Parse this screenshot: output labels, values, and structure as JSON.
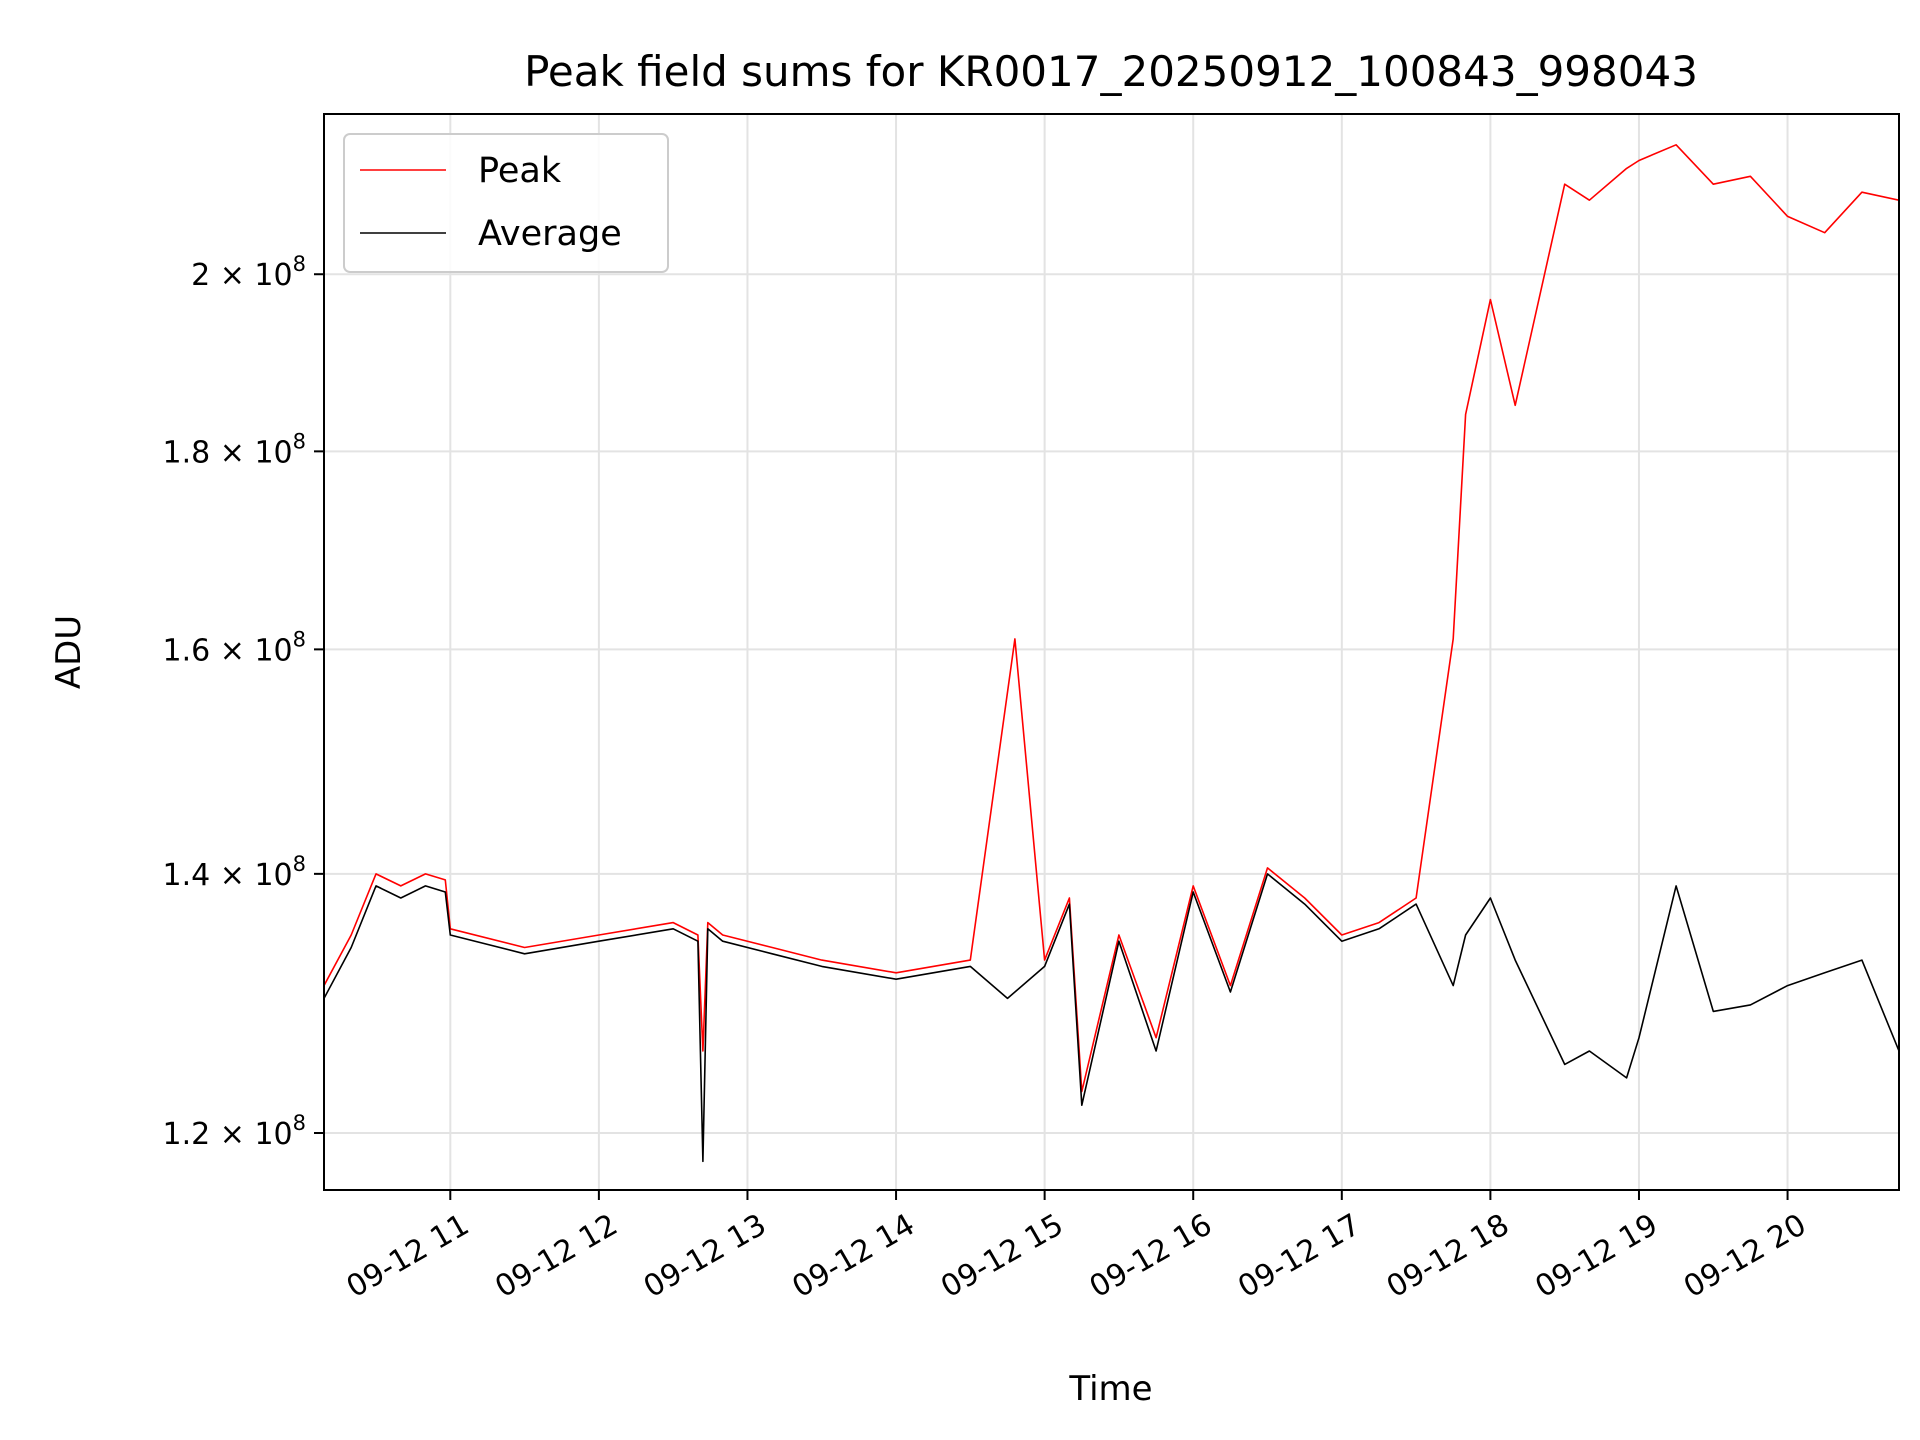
{
  "chart_data": {
    "type": "line",
    "title": "Peak field sums for KR0017_20250912_100843_998043",
    "xlabel": "Time",
    "ylabel": "ADU",
    "x_scale": "time",
    "y_scale": "log",
    "xlim": [
      "2025-09-12 10:09",
      "2025-09-12 20:45"
    ],
    "ylim": [
      116000000,
      220000000
    ],
    "grid": true,
    "legend_position": "upper left",
    "x_ticks": [
      "09-12 11",
      "09-12 12",
      "09-12 13",
      "09-12 14",
      "09-12 15",
      "09-12 16",
      "09-12 17",
      "09-12 18",
      "09-12 19",
      "09-12 20"
    ],
    "y_ticks": [
      {
        "value": 120000000,
        "mantissa": "1.2",
        "exponent": "8"
      },
      {
        "value": 140000000,
        "mantissa": "1.4",
        "exponent": "8"
      },
      {
        "value": 160000000,
        "mantissa": "1.6",
        "exponent": "8"
      },
      {
        "value": 180000000,
        "mantissa": "1.8",
        "exponent": "8"
      },
      {
        "value": 200000000,
        "mantissa": "2",
        "exponent": "8"
      }
    ],
    "series": [
      {
        "name": "Peak",
        "color": "#ff0000",
        "x": [
          "2025-09-12 10:09",
          "2025-09-12 10:20",
          "2025-09-12 10:30",
          "2025-09-12 10:40",
          "2025-09-12 10:50",
          "2025-09-12 10:58",
          "2025-09-12 11:00",
          "2025-09-12 11:30",
          "2025-09-12 12:00",
          "2025-09-12 12:30",
          "2025-09-12 12:40",
          "2025-09-12 12:42",
          "2025-09-12 12:44",
          "2025-09-12 12:50",
          "2025-09-12 13:10",
          "2025-09-12 13:30",
          "2025-09-12 14:00",
          "2025-09-12 14:30",
          "2025-09-12 14:48",
          "2025-09-12 15:00",
          "2025-09-12 15:10",
          "2025-09-12 15:15",
          "2025-09-12 15:30",
          "2025-09-12 15:45",
          "2025-09-12 16:00",
          "2025-09-12 16:15",
          "2025-09-12 16:30",
          "2025-09-12 16:45",
          "2025-09-12 17:00",
          "2025-09-12 17:15",
          "2025-09-12 17:30",
          "2025-09-12 17:45",
          "2025-09-12 17:50",
          "2025-09-12 18:00",
          "2025-09-12 18:10",
          "2025-09-12 18:30",
          "2025-09-12 18:40",
          "2025-09-12 18:55",
          "2025-09-12 19:00",
          "2025-09-12 19:15",
          "2025-09-12 19:30",
          "2025-09-12 19:45",
          "2025-09-12 20:00",
          "2025-09-12 20:15",
          "2025-09-12 20:30",
          "2025-09-12 20:45"
        ],
        "y": [
          131000000,
          135000000,
          140000000,
          139000000,
          140000000,
          139500000,
          135500000,
          134000000,
          135000000,
          136000000,
          135000000,
          126000000,
          136000000,
          135000000,
          134000000,
          133000000,
          132000000,
          133000000,
          161000000,
          133000000,
          138000000,
          123000000,
          135000000,
          127000000,
          139000000,
          131000000,
          140500000,
          138000000,
          135000000,
          136000000,
          138000000,
          161000000,
          184000000,
          197000000,
          185000000,
          211000000,
          209000000,
          213000000,
          214000000,
          216000000,
          211000000,
          212000000,
          207000000,
          205000000,
          210000000,
          209000000
        ]
      },
      {
        "name": "Average",
        "color": "#000000",
        "x": [
          "2025-09-12 10:09",
          "2025-09-12 10:20",
          "2025-09-12 10:30",
          "2025-09-12 10:40",
          "2025-09-12 10:50",
          "2025-09-12 10:58",
          "2025-09-12 11:00",
          "2025-09-12 11:30",
          "2025-09-12 12:00",
          "2025-09-12 12:30",
          "2025-09-12 12:40",
          "2025-09-12 12:42",
          "2025-09-12 12:44",
          "2025-09-12 12:50",
          "2025-09-12 13:10",
          "2025-09-12 13:30",
          "2025-09-12 14:00",
          "2025-09-12 14:30",
          "2025-09-12 14:45",
          "2025-09-12 15:00",
          "2025-09-12 15:10",
          "2025-09-12 15:15",
          "2025-09-12 15:30",
          "2025-09-12 15:45",
          "2025-09-12 16:00",
          "2025-09-12 16:15",
          "2025-09-12 16:30",
          "2025-09-12 16:45",
          "2025-09-12 17:00",
          "2025-09-12 17:15",
          "2025-09-12 17:30",
          "2025-09-12 17:45",
          "2025-09-12 17:50",
          "2025-09-12 18:00",
          "2025-09-12 18:10",
          "2025-09-12 18:30",
          "2025-09-12 18:40",
          "2025-09-12 18:55",
          "2025-09-12 19:00",
          "2025-09-12 19:15",
          "2025-09-12 19:30",
          "2025-09-12 19:45",
          "2025-09-12 20:00",
          "2025-09-12 20:15",
          "2025-09-12 20:30",
          "2025-09-12 20:45"
        ],
        "y": [
          130000000,
          134000000,
          139000000,
          138000000,
          139000000,
          138500000,
          135000000,
          133500000,
          134500000,
          135500000,
          134500000,
          118000000,
          135500000,
          134500000,
          133500000,
          132500000,
          131500000,
          132500000,
          130000000,
          132500000,
          137500000,
          122000000,
          134500000,
          126000000,
          138500000,
          130500000,
          140000000,
          137500000,
          134500000,
          135500000,
          137500000,
          131000000,
          135000000,
          138000000,
          133000000,
          125000000,
          126000000,
          124000000,
          127000000,
          139000000,
          129000000,
          129500000,
          131000000,
          132000000,
          133000000,
          126000000
        ]
      }
    ]
  }
}
